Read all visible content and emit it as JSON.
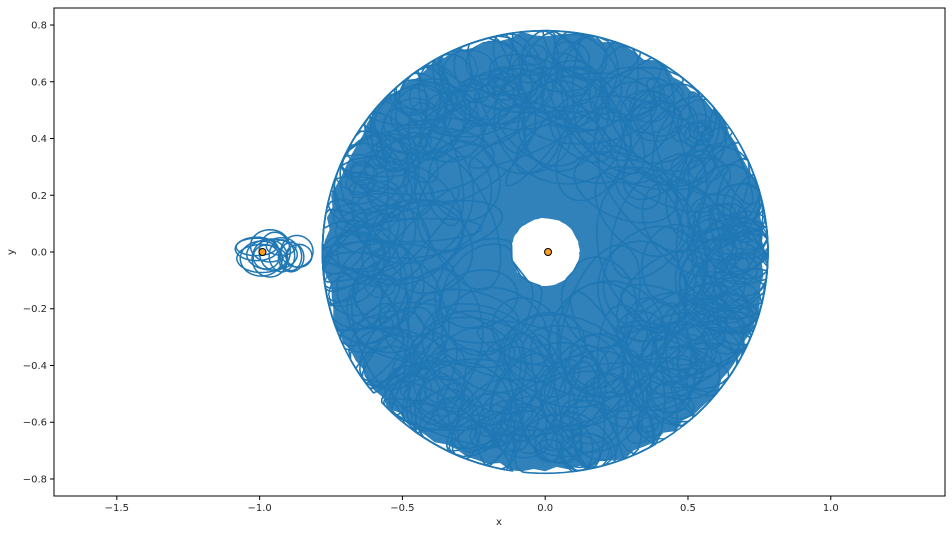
{
  "chart_data": {
    "type": "line",
    "title": "",
    "xlabel": "x",
    "ylabel": "y",
    "xlim": [
      -1.72,
      1.4
    ],
    "ylim": [
      -0.86,
      0.86
    ],
    "xticks": [
      -1.5,
      -1.0,
      -0.5,
      0.0,
      0.5,
      1.0
    ],
    "xtick_labels": [
      "−1.5",
      "−1.0",
      "−0.5",
      "0.0",
      "0.5",
      "1.0"
    ],
    "yticks": [
      -0.8,
      -0.6,
      -0.4,
      -0.2,
      0.0,
      0.2,
      0.4,
      0.6,
      0.8
    ],
    "ytick_labels": [
      "−0.8",
      "−0.6",
      "−0.4",
      "−0.2",
      "0.0",
      "0.2",
      "0.4",
      "0.6",
      "0.8"
    ],
    "grid": false,
    "series": [
      {
        "kind": "orbit-trajectory",
        "color": "#1f77b4",
        "main_region": {
          "center": [
            0.0,
            0.0
          ],
          "outer_radius": 0.78,
          "inner_hole_radius": 0.12
        },
        "secondary_region": {
          "center": [
            -0.99,
            0.0
          ],
          "radius": 0.09
        },
        "bridge_x_range": [
          -0.93,
          -0.82
        ]
      }
    ],
    "points": [
      {
        "x": 0.01,
        "y": 0.0,
        "color": "#ff9e1f",
        "edge": "#000000"
      },
      {
        "x": -0.99,
        "y": 0.0,
        "color": "#ff9e1f",
        "edge": "#000000"
      }
    ]
  }
}
